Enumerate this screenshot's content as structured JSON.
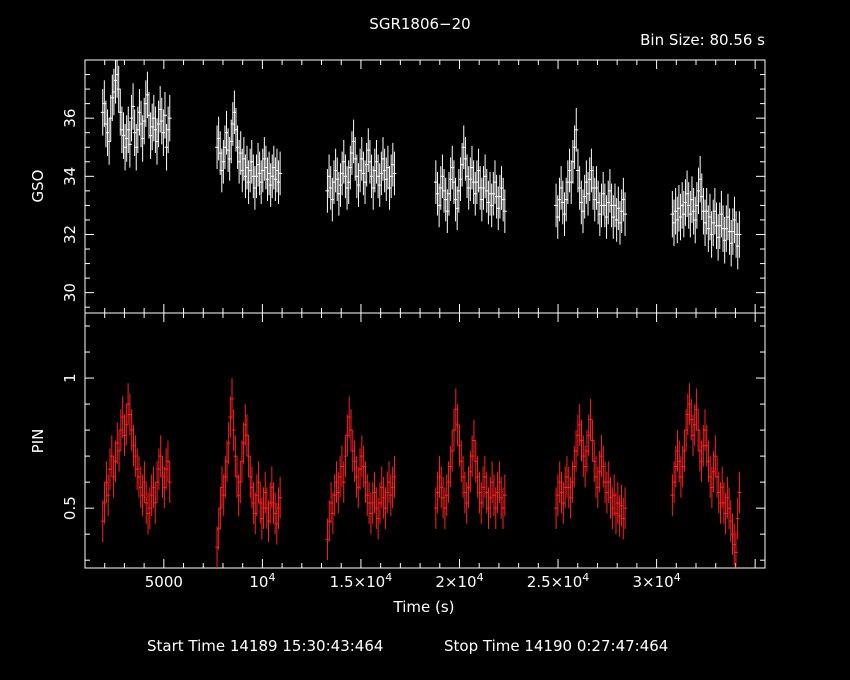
{
  "chart_data": {
    "type": "scatter",
    "title": "SGR1806−20",
    "bin_size_label": "Bin Size:  80.56  s",
    "xlabel": "Time (s)",
    "xlim": [
      1000,
      35500
    ],
    "x_ticks": [
      {
        "value": 5000,
        "label": "5000"
      },
      {
        "value": 10000,
        "label": "10",
        "exp": "4"
      },
      {
        "value": 15000,
        "label": "1.5×10",
        "exp": "4"
      },
      {
        "value": 20000,
        "label": "2×10",
        "exp": "4"
      },
      {
        "value": 25000,
        "label": "2.5×10",
        "exp": "4"
      },
      {
        "value": 30000,
        "label": "3×10",
        "exp": "4"
      }
    ],
    "footer": {
      "start": "Start Time 14189  15:30:43:464",
      "stop": "Stop Time 14190   0:27:47:464"
    },
    "panels": [
      {
        "ylabel": "GSO",
        "ylim": [
          29.3,
          38.0
        ],
        "y_ticks": [
          30,
          32,
          34,
          36
        ],
        "color": "#ffffff",
        "segments": [
          {
            "x0": 1900,
            "x1": 5300,
            "y": [
              36.2,
              36.5,
              35.8,
              35.5,
              35.2,
              36.0,
              36.7,
              36.9,
              37.3,
              37.5,
              37.0,
              36.2,
              35.6,
              35.4,
              35.0,
              35.3,
              35.6,
              35.1,
              36.0,
              36.4,
              35.5,
              35.0,
              35.6,
              36.2,
              35.8,
              35.3,
              35.9,
              36.5,
              36.8,
              36.1,
              35.4,
              35.7,
              36.0,
              35.6,
              35.2,
              35.8,
              36.3,
              35.9,
              35.5,
              36.1,
              35.0,
              35.6,
              36.0
            ],
            "err": 0.8
          },
          {
            "x0": 7700,
            "x1": 10900,
            "y": [
              35.0,
              35.3,
              34.8,
              34.2,
              34.5,
              35.0,
              35.5,
              34.9,
              34.6,
              35.2,
              35.8,
              36.2,
              35.6,
              35.0,
              34.5,
              34.8,
              34.2,
              34.6,
              34.0,
              34.3,
              33.8,
              34.2,
              34.5,
              34.0,
              33.6,
              34.0,
              34.4,
              34.1,
              33.8,
              34.2,
              34.6,
              34.3,
              33.9,
              34.1,
              33.7,
              34.0,
              34.3,
              33.9,
              34.2,
              33.8,
              34.1
            ],
            "err": 0.75
          },
          {
            "x0": 13300,
            "x1": 16700,
            "y": [
              33.5,
              34.0,
              33.6,
              33.2,
              33.8,
              34.2,
              33.9,
              33.4,
              33.7,
              34.1,
              34.5,
              34.0,
              33.6,
              33.8,
              34.3,
              34.8,
              35.2,
              34.6,
              34.0,
              33.7,
              34.2,
              34.6,
              34.1,
              33.8,
              34.4,
              34.9,
              34.5,
              34.0,
              33.6,
              34.2,
              34.5,
              34.0,
              33.7,
              34.1,
              34.6,
              34.2,
              33.9,
              34.3,
              33.6,
              34.0,
              34.4,
              34.1
            ],
            "err": 0.75
          },
          {
            "x0": 18800,
            "x1": 22300,
            "y": [
              33.8,
              33.4,
              33.0,
              33.6,
              34.0,
              33.5,
              33.2,
              32.8,
              33.4,
              33.9,
              34.3,
              33.8,
              33.2,
              32.9,
              33.5,
              33.9,
              34.4,
              35.0,
              34.6,
              34.0,
              33.6,
              33.9,
              34.3,
              33.8,
              33.4,
              33.8,
              34.2,
              33.6,
              33.2,
              33.6,
              34.0,
              33.5,
              33.1,
              33.4,
              33.0,
              33.4,
              33.8,
              33.3,
              32.9,
              33.3,
              33.6,
              33.2,
              32.8
            ],
            "err": 0.75
          },
          {
            "x0": 24900,
            "x1": 28400,
            "y": [
              33.0,
              32.6,
              33.2,
              33.6,
              33.1,
              32.7,
              33.2,
              33.8,
              34.2,
              33.8,
              34.5,
              35.0,
              35.6,
              34.2,
              33.6,
              33.1,
              32.8,
              33.3,
              33.8,
              33.4,
              33.9,
              34.2,
              33.6,
              33.2,
              33.6,
              33.1,
              32.7,
              33.0,
              33.4,
              33.0,
              32.6,
              33.1,
              33.5,
              33.0,
              32.6,
              33.0,
              32.5,
              32.9,
              32.4,
              32.8,
              33.2,
              32.7
            ],
            "err": 0.75
          },
          {
            "x0": 30800,
            "x1": 34200,
            "y": [
              32.7,
              32.4,
              32.8,
              32.5,
              32.9,
              32.6,
              33.0,
              32.7,
              33.1,
              33.4,
              33.0,
              32.7,
              33.2,
              32.8,
              32.5,
              33.0,
              33.5,
              33.9,
              33.3,
              32.8,
              32.4,
              32.8,
              32.2,
              32.6,
              32.0,
              32.4,
              32.8,
              32.3,
              31.9,
              32.3,
              32.7,
              32.2,
              31.8,
              32.2,
              32.6,
              32.1,
              31.7,
              32.1,
              32.5,
              32.0,
              31.6,
              32.0
            ],
            "err": 0.8
          }
        ]
      },
      {
        "ylabel": "PIN",
        "ylim": [
          0.27,
          1.25
        ],
        "y_ticks": [
          0.5,
          1
        ],
        "y_tick_labels": [
          "0.5",
          "1"
        ],
        "color": "#ff2020",
        "segments": [
          {
            "x0": 1900,
            "x1": 5300,
            "y": [
              0.45,
              0.52,
              0.6,
              0.55,
              0.65,
              0.7,
              0.62,
              0.68,
              0.75,
              0.72,
              0.8,
              0.85,
              0.78,
              0.82,
              0.9,
              0.86,
              0.8,
              0.74,
              0.7,
              0.65,
              0.62,
              0.58,
              0.55,
              0.6,
              0.52,
              0.48,
              0.5,
              0.55,
              0.58,
              0.52,
              0.6,
              0.65,
              0.7,
              0.62,
              0.58,
              0.65,
              0.68,
              0.6
            ],
            "err": 0.08
          },
          {
            "x0": 7700,
            "x1": 10900,
            "y": [
              0.35,
              0.42,
              0.5,
              0.58,
              0.55,
              0.62,
              0.68,
              0.75,
              0.85,
              0.92,
              0.8,
              0.7,
              0.62,
              0.55,
              0.6,
              0.68,
              0.75,
              0.82,
              0.78,
              0.7,
              0.62,
              0.58,
              0.52,
              0.48,
              0.55,
              0.6,
              0.52,
              0.46,
              0.5,
              0.56,
              0.5,
              0.45,
              0.52,
              0.58,
              0.52,
              0.48,
              0.44,
              0.5,
              0.54
            ],
            "err": 0.08
          },
          {
            "x0": 13300,
            "x1": 16700,
            "y": [
              0.38,
              0.45,
              0.52,
              0.48,
              0.55,
              0.6,
              0.56,
              0.62,
              0.66,
              0.6,
              0.7,
              0.78,
              0.85,
              0.8,
              0.72,
              0.68,
              0.62,
              0.58,
              0.65,
              0.7,
              0.66,
              0.6,
              0.55,
              0.52,
              0.48,
              0.52,
              0.56,
              0.5,
              0.46,
              0.52,
              0.58,
              0.54,
              0.5,
              0.56,
              0.6,
              0.55,
              0.58,
              0.62
            ],
            "err": 0.08
          },
          {
            "x0": 18800,
            "x1": 22300,
            "y": [
              0.5,
              0.56,
              0.62,
              0.58,
              0.54,
              0.5,
              0.55,
              0.6,
              0.66,
              0.72,
              0.8,
              0.88,
              0.82,
              0.74,
              0.68,
              0.62,
              0.56,
              0.52,
              0.58,
              0.64,
              0.7,
              0.76,
              0.68,
              0.62,
              0.56,
              0.52,
              0.58,
              0.62,
              0.56,
              0.5,
              0.54,
              0.6,
              0.55,
              0.5,
              0.56,
              0.6,
              0.54,
              0.5,
              0.55
            ],
            "err": 0.08
          },
          {
            "x0": 24900,
            "x1": 28400,
            "y": [
              0.5,
              0.55,
              0.6,
              0.56,
              0.52,
              0.58,
              0.62,
              0.58,
              0.54,
              0.6,
              0.66,
              0.72,
              0.78,
              0.82,
              0.76,
              0.7,
              0.66,
              0.72,
              0.78,
              0.84,
              0.76,
              0.68,
              0.62,
              0.58,
              0.64,
              0.7,
              0.66,
              0.6,
              0.56,
              0.6,
              0.54,
              0.5,
              0.55,
              0.48,
              0.52,
              0.47,
              0.51,
              0.46,
              0.5
            ],
            "err": 0.08
          },
          {
            "x0": 30800,
            "x1": 34200,
            "y": [
              0.55,
              0.6,
              0.66,
              0.72,
              0.68,
              0.62,
              0.66,
              0.72,
              0.8,
              0.86,
              0.9,
              0.84,
              0.78,
              0.82,
              0.88,
              0.8,
              0.72,
              0.68,
              0.74,
              0.8,
              0.74,
              0.68,
              0.62,
              0.58,
              0.64,
              0.7,
              0.62,
              0.56,
              0.52,
              0.58,
              0.52,
              0.48,
              0.54,
              0.5,
              0.45,
              0.4,
              0.36,
              0.33,
              0.46,
              0.56
            ],
            "err": 0.08
          }
        ]
      }
    ]
  }
}
